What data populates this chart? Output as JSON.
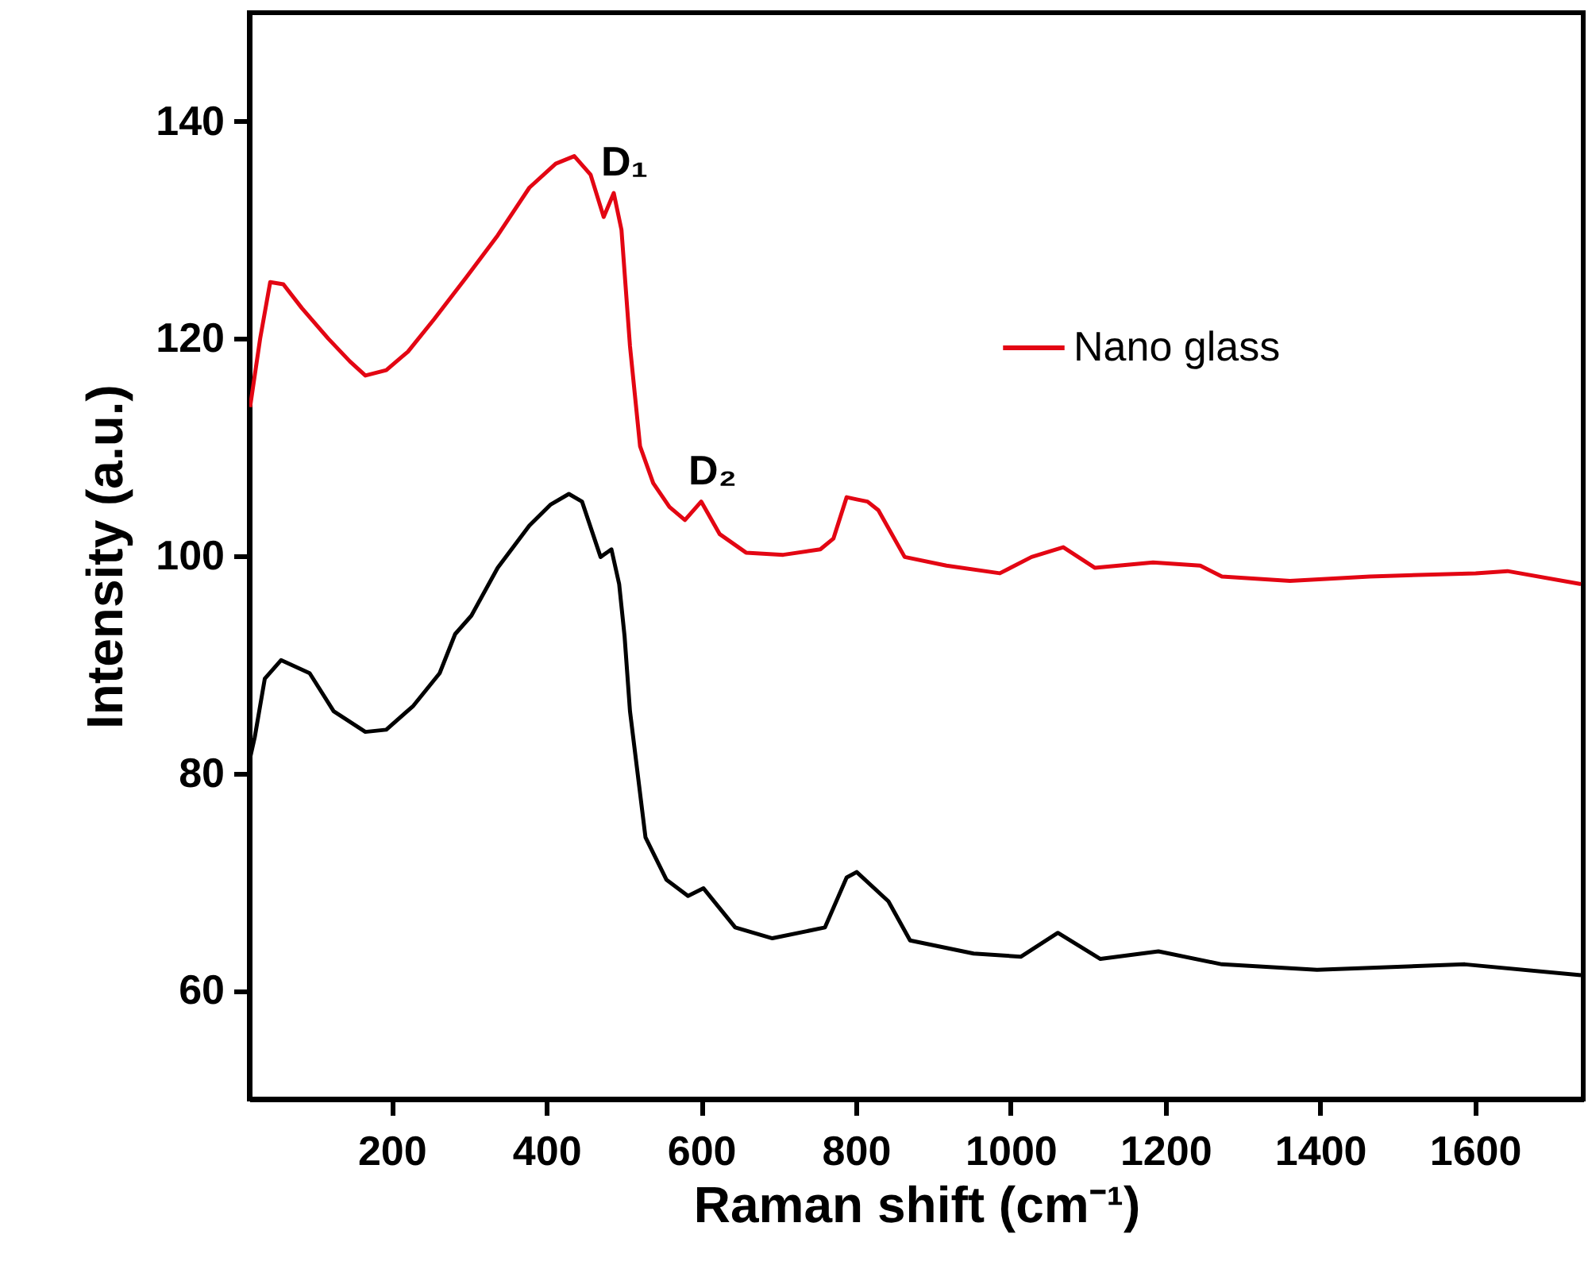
{
  "chart_data": {
    "type": "line",
    "xlabel": "Raman shift (cm⁻¹)",
    "ylabel": "Intensity (a.u.)",
    "xlim": [
      16,
      1740
    ],
    "ylim": [
      50,
      150
    ],
    "xticks": [
      200,
      400,
      600,
      800,
      1000,
      1200,
      1400,
      1600
    ],
    "yticks": [
      60,
      80,
      100,
      120,
      140
    ],
    "grid": false,
    "legend": "top right",
    "line_style": "solid",
    "marker": "none",
    "annotations": [
      {
        "text": "D₁",
        "x": 487,
        "y": 133.4
      },
      {
        "text": "D₂",
        "x": 600,
        "y": 105
      }
    ],
    "series": [
      {
        "name": "Nano glass",
        "color": "#e30613",
        "x": [
          17,
          30,
          43,
          60,
          84,
          118,
          146,
          166,
          193,
          221,
          255,
          296,
          337,
          378,
          412,
          436,
          457,
          474,
          487,
          497,
          508,
          521,
          538,
          559,
          579,
          600,
          624,
          658,
          706,
          754,
          771,
          788,
          801,
          815,
          829,
          863,
          917,
          986,
          1027,
          1068,
          1109,
          1184,
          1245,
          1273,
          1361,
          1464,
          1601,
          1642,
          1737
        ],
        "values": [
          113.7,
          120,
          125.2,
          125,
          122.8,
          120,
          117.9,
          116.6,
          117.1,
          118.8,
          121.8,
          125.6,
          129.5,
          133.9,
          136.1,
          136.8,
          135.1,
          131.2,
          133.4,
          130,
          119.3,
          110.1,
          106.7,
          104.5,
          103.3,
          105,
          102,
          100.3,
          100.1,
          100.6,
          101.6,
          105.4,
          105.2,
          105,
          104.2,
          99.9,
          99.1,
          98.4,
          99.9,
          100.8,
          98.9,
          99.4,
          99.1,
          98.1,
          97.7,
          98.1,
          98.4,
          98.6,
          97.4
        ]
      },
      {
        "color": "#000000",
        "x": [
          17,
          23,
          36,
          57,
          94,
          125,
          166,
          193,
          228,
          262,
          282,
          303,
          337,
          378,
          405,
          429,
          446,
          470,
          484,
          494,
          501,
          508,
          528,
          555,
          583,
          603,
          644,
          692,
          760,
          788,
          801,
          842,
          870,
          952,
          1013,
          1061,
          1116,
          1191,
          1273,
          1396,
          1587,
          1737
        ],
        "values": [
          81.4,
          83.3,
          88.7,
          90.4,
          89.2,
          85.7,
          83.8,
          84,
          86.2,
          89.2,
          92.8,
          94.5,
          98.9,
          102.8,
          104.7,
          105.7,
          105,
          99.9,
          100.6,
          97.4,
          92.6,
          85.7,
          74.1,
          70.2,
          68.7,
          69.4,
          65.8,
          64.8,
          65.8,
          70.4,
          70.9,
          68.2,
          64.6,
          63.4,
          63.1,
          65.3,
          62.9,
          63.6,
          62.4,
          61.9,
          62.4,
          61.4
        ]
      }
    ]
  }
}
